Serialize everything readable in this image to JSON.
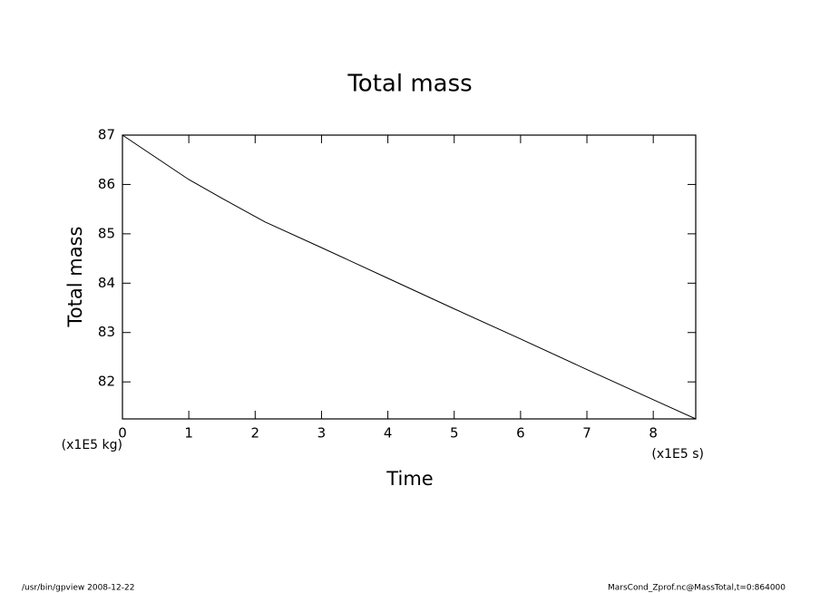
{
  "chart_data": {
    "type": "line",
    "title": "Total mass",
    "x_label": "Time",
    "y_label": "Total mass",
    "x_unit": "(x1E5 s)",
    "y_unit": "(x1E5 kg)",
    "x": [
      0,
      0.5,
      1,
      1.5,
      2,
      2.15,
      3,
      4,
      5,
      6,
      7,
      8,
      8.64
    ],
    "series": [
      {
        "name": "Total mass",
        "color": "#000000",
        "values": [
          87,
          86.55,
          86.1,
          85.72,
          85.35,
          85.24,
          84.72,
          84.1,
          83.48,
          82.87,
          82.25,
          81.64,
          81.25
        ]
      }
    ],
    "xlim": [
      0,
      8.64
    ],
    "xticks": [
      0,
      1,
      2,
      3,
      4,
      5,
      6,
      7,
      8
    ],
    "ylim": [
      81.25,
      87
    ],
    "yticks": [
      82,
      83,
      84,
      85,
      86,
      87
    ],
    "footer_left": "/usr/bin/gpview   2008-12-22",
    "footer_right": "MarsCond_Zprof.nc@MassTotal,t=0:864000"
  }
}
